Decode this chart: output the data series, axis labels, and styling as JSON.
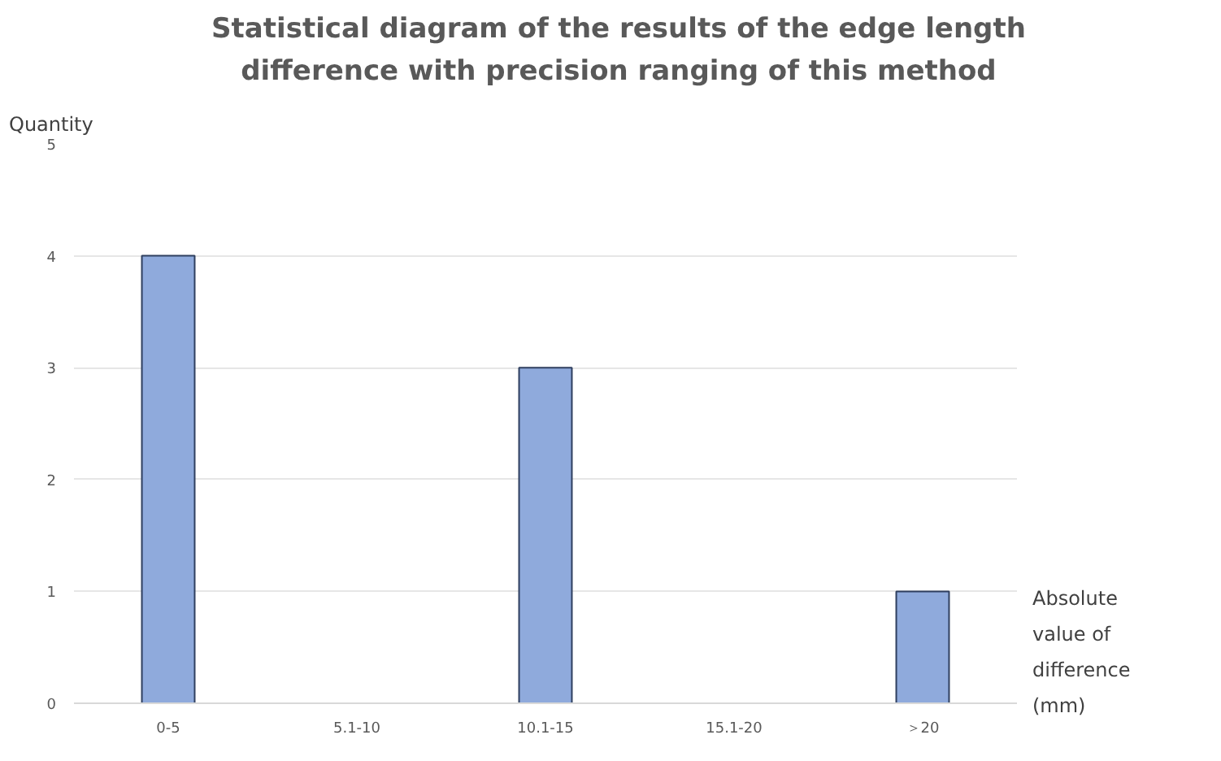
{
  "chart_data": {
    "type": "bar",
    "title": "Statistical diagram of the results of the edge length difference with precision ranging of this method",
    "ylabel": "Quantity",
    "xlabel": "Absolute value of difference (mm)",
    "categories": [
      "0-5",
      "5.1-10",
      "10.1-15",
      "15.1-20",
      "＞20"
    ],
    "values": [
      4,
      0,
      3,
      0,
      1
    ],
    "color": "#8faadc",
    "ylim": [
      0,
      5
    ],
    "yticks": [
      0,
      1,
      2,
      3,
      4,
      5
    ],
    "grid": "y",
    "legend": false
  }
}
